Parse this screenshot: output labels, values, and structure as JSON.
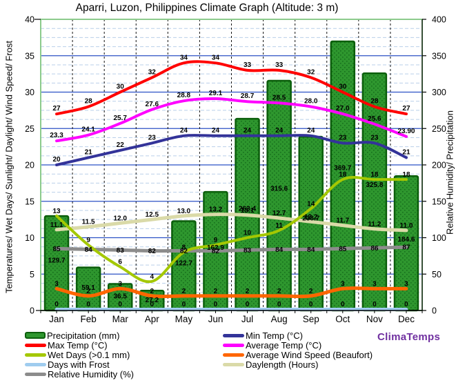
{
  "title": "Aparri, Luzon, Philippines Climate Graph (Altitude: 3 m)",
  "watermark": "ClimaTemps",
  "chart_data": {
    "type": "bar",
    "categories": [
      "Jan",
      "Feb",
      "Mar",
      "Apr",
      "May",
      "Jun",
      "Jul",
      "Aug",
      "Sep",
      "Oct",
      "Nov",
      "Dec"
    ],
    "axes": {
      "left": {
        "label": "Temperatures/ Wet Days/ Sunlight/ Daylight/ Wind Speed/ Frost",
        "min": 0,
        "max": 40,
        "major_step": 5,
        "minor_step": 1.25
      },
      "right": {
        "label": "Relative Humidity/ Precipitation",
        "min": 0,
        "max": 400,
        "major_step": 50
      }
    },
    "grid": true,
    "legend_position": "bottom",
    "series": [
      {
        "id": "precipitation",
        "name": "Precipitation (mm)",
        "type": "bar",
        "axis": "right",
        "color": "#2E962E",
        "border_color": "#0B5E0B",
        "values": [
          129.7,
          59.1,
          36.5,
          27.2,
          122.7,
          162.9,
          263.4,
          315.6,
          238.7,
          369.7,
          325.8,
          184.6
        ],
        "labels": [
          "129.7",
          "59.1",
          "36.5",
          "27.2",
          "122.7",
          "162.9",
          "263.4",
          "315.6",
          "238.7",
          "369.7",
          "325.8",
          "184.6"
        ]
      },
      {
        "id": "max-temp",
        "name": "Max Temp (°C)",
        "type": "line",
        "axis": "left",
        "color": "#FF0000",
        "values": [
          27,
          28,
          30,
          32,
          34,
          34,
          33,
          33,
          32,
          30,
          28,
          27
        ],
        "labels": [
          "27",
          "28",
          "30",
          "32",
          "34",
          "34",
          "33",
          "33",
          "32",
          "30",
          "28",
          "27"
        ]
      },
      {
        "id": "avg-temp",
        "name": "Average Temp (°C)",
        "type": "line",
        "axis": "left",
        "color": "#FF00FF",
        "values": [
          23.3,
          24.1,
          25.7,
          27.6,
          28.8,
          29.1,
          28.7,
          28.5,
          28.0,
          27.0,
          25.6,
          23.9
        ],
        "labels": [
          "23.3",
          "24.1",
          "25.7",
          "27.6",
          "28.8",
          "29.1",
          "28.7",
          "28.5",
          "28.0",
          "27.0",
          "25.6",
          "23.90"
        ]
      },
      {
        "id": "min-temp",
        "name": "Min Temp (°C)",
        "type": "line",
        "axis": "left",
        "color": "#333399",
        "values": [
          20,
          21,
          22,
          23,
          24,
          24,
          24,
          24,
          24,
          23,
          23,
          21
        ],
        "labels": [
          "20",
          "21",
          "22",
          "23",
          "24",
          "24",
          "24",
          "24",
          "24",
          "23",
          "23",
          "21"
        ]
      },
      {
        "id": "wet-days",
        "name": "Wet Days (>0.1 mm)",
        "type": "line",
        "axis": "left",
        "color": "#A4C802",
        "values": [
          13,
          9,
          6,
          4,
          8,
          9,
          10,
          11,
          14,
          18,
          18,
          18
        ],
        "labels": [
          "13",
          "9",
          "6",
          "4",
          "8",
          "9",
          "10",
          "11",
          "14",
          "18",
          "18",
          "18"
        ]
      },
      {
        "id": "frost-days",
        "name": "Days with Frost",
        "type": "line",
        "axis": "left",
        "color": "#9FCCEF",
        "values": [
          0,
          0,
          0,
          0,
          0,
          0,
          0,
          0,
          0,
          0,
          0,
          0
        ],
        "labels": [
          "0",
          "0",
          "0",
          "0",
          "0",
          "0",
          "0",
          "0",
          "0",
          "0",
          "0",
          "0"
        ]
      },
      {
        "id": "wind-speed",
        "name": "Average Wind Speed (Beaufort)",
        "type": "line",
        "axis": "left",
        "color": "#FF6600",
        "values": [
          3,
          2,
          3,
          2,
          2,
          2,
          2,
          2,
          2,
          3,
          3,
          3
        ],
        "labels": [
          "3",
          "2",
          "3",
          "2",
          "2",
          "2",
          "2",
          "2",
          "2",
          "3",
          "3",
          "3"
        ]
      },
      {
        "id": "daylength",
        "name": "Daylength (Hours)",
        "type": "line",
        "axis": "left",
        "color": "#DADAA8",
        "values": [
          11.1,
          11.5,
          12.0,
          12.5,
          13.0,
          13.2,
          13.1,
          12.7,
          12.2,
          11.7,
          11.2,
          11.0
        ],
        "labels": [
          "11.1",
          "11.5",
          "12.0",
          "12.5",
          "13.0",
          "13.2",
          "13.1",
          "12.7",
          "12.2",
          "11.7",
          "11.2",
          "11.0"
        ]
      },
      {
        "id": "humidity",
        "name": "Relative Humidity (%)",
        "type": "line",
        "axis": "right",
        "color": "#8C8C8C",
        "values": [
          85,
          84,
          83,
          82,
          82,
          82,
          83,
          84,
          84,
          85,
          86,
          87
        ],
        "labels": [
          "85",
          "84",
          "83",
          "82",
          "82",
          "82",
          "83",
          "84",
          "84",
          "85",
          "86",
          "87"
        ]
      }
    ],
    "legend": {
      "left_column": [
        "Precipitation (mm)",
        "Max Temp (°C)",
        "Wet Days (>0.1 mm)",
        "Days with Frost",
        "Relative Humidity (%)"
      ],
      "right_column": [
        "Min Temp (°C)",
        "Average Temp (°C)",
        "Average Wind Speed (Beaufort)",
        "Daylength (Hours)"
      ]
    }
  }
}
